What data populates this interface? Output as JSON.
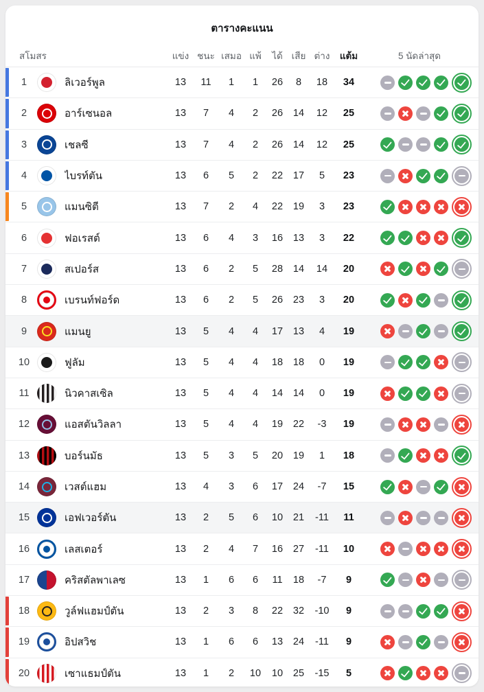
{
  "title": "ตารางคะแนน",
  "header": {
    "club": "สโมสร",
    "played": "แข่ง",
    "win": "ชนะ",
    "draw": "เสมอ",
    "loss": "แพ้",
    "gf": "ได้",
    "ga": "เสีย",
    "gd": "ต่าง",
    "points": "แต้ม",
    "last5": "5 นัดล่าสุด"
  },
  "colors": {
    "champions": "#4678e0",
    "europa": "#f7871e",
    "relegation": "#e2403a",
    "win": "#34a853",
    "draw": "#b1afba",
    "loss": "#ee453e",
    "highlight": "#f4f5f6"
  },
  "rows": [
    {
      "pos": 1,
      "team": "ลิเวอร์พูล",
      "played": 13,
      "win": 11,
      "draw": 1,
      "loss": 1,
      "gf": 26,
      "ga": 8,
      "gd": 18,
      "points": 34,
      "zone": "champions",
      "highlight": false,
      "form": [
        "d",
        "w",
        "w",
        "w",
        "w"
      ],
      "crest": {
        "style": "emblem",
        "c1": "#d3212f",
        "c2": "#ffffff"
      }
    },
    {
      "pos": 2,
      "team": "อาร์เซนอล",
      "played": 13,
      "win": 7,
      "draw": 4,
      "loss": 2,
      "gf": 26,
      "ga": 14,
      "gd": 12,
      "points": 25,
      "zone": "champions",
      "highlight": false,
      "form": [
        "d",
        "l",
        "d",
        "w",
        "w"
      ],
      "crest": {
        "style": "target",
        "c1": "#db0007",
        "c2": "#ffffff"
      }
    },
    {
      "pos": 3,
      "team": "เชลซี",
      "played": 13,
      "win": 7,
      "draw": 4,
      "loss": 2,
      "gf": 26,
      "ga": 14,
      "gd": 12,
      "points": 25,
      "zone": "champions",
      "highlight": false,
      "form": [
        "w",
        "d",
        "d",
        "w",
        "w"
      ],
      "crest": {
        "style": "target",
        "c1": "#0a4595",
        "c2": "#ffffff"
      }
    },
    {
      "pos": 4,
      "team": "ไบรท์ตัน",
      "played": 13,
      "win": 6,
      "draw": 5,
      "loss": 2,
      "gf": 22,
      "ga": 17,
      "gd": 5,
      "points": 23,
      "zone": "champions",
      "highlight": false,
      "form": [
        "d",
        "l",
        "w",
        "w",
        "d"
      ],
      "crest": {
        "style": "emblem",
        "c1": "#0054a6",
        "c2": "#ffffff"
      }
    },
    {
      "pos": 5,
      "team": "แมนซิตี",
      "played": 13,
      "win": 7,
      "draw": 2,
      "loss": 4,
      "gf": 22,
      "ga": 19,
      "gd": 3,
      "points": 23,
      "zone": "europa",
      "highlight": false,
      "form": [
        "w",
        "l",
        "l",
        "l",
        "l"
      ],
      "crest": {
        "style": "target",
        "c1": "#98c5e9",
        "c2": "#ffffff"
      }
    },
    {
      "pos": 6,
      "team": "ฟอเรสต์",
      "played": 13,
      "win": 6,
      "draw": 4,
      "loss": 3,
      "gf": 16,
      "ga": 13,
      "gd": 3,
      "points": 22,
      "zone": null,
      "highlight": false,
      "form": [
        "w",
        "w",
        "l",
        "l",
        "w"
      ],
      "crest": {
        "style": "emblem",
        "c1": "#e53233",
        "c2": "#ffffff"
      }
    },
    {
      "pos": 7,
      "team": "สเปอร์ส",
      "played": 13,
      "win": 6,
      "draw": 2,
      "loss": 5,
      "gf": 28,
      "ga": 14,
      "gd": 14,
      "points": 20,
      "zone": null,
      "highlight": false,
      "form": [
        "l",
        "w",
        "l",
        "w",
        "d"
      ],
      "crest": {
        "style": "emblem",
        "c1": "#1b2a5b",
        "c2": "#ffffff"
      }
    },
    {
      "pos": 8,
      "team": "เบรนท์ฟอร์ด",
      "played": 13,
      "win": 6,
      "draw": 2,
      "loss": 5,
      "gf": 26,
      "ga": 23,
      "gd": 3,
      "points": 20,
      "zone": null,
      "highlight": false,
      "form": [
        "w",
        "l",
        "w",
        "d",
        "w"
      ],
      "crest": {
        "style": "ring",
        "c1": "#e30613",
        "c2": "#ffffff"
      }
    },
    {
      "pos": 9,
      "team": "แมนยู",
      "played": 13,
      "win": 5,
      "draw": 4,
      "loss": 4,
      "gf": 17,
      "ga": 13,
      "gd": 4,
      "points": 19,
      "zone": null,
      "highlight": true,
      "form": [
        "l",
        "d",
        "w",
        "d",
        "w"
      ],
      "crest": {
        "style": "target",
        "c1": "#da291c",
        "c2": "#fbe122"
      }
    },
    {
      "pos": 10,
      "team": "ฟูลัม",
      "played": 13,
      "win": 5,
      "draw": 4,
      "loss": 4,
      "gf": 18,
      "ga": 18,
      "gd": 0,
      "points": 19,
      "zone": null,
      "highlight": false,
      "form": [
        "d",
        "w",
        "w",
        "l",
        "d"
      ],
      "crest": {
        "style": "emblem",
        "c1": "#1a1a1a",
        "c2": "#ffffff"
      }
    },
    {
      "pos": 11,
      "team": "นิวคาสเซิล",
      "played": 13,
      "win": 5,
      "draw": 4,
      "loss": 4,
      "gf": 14,
      "ga": 14,
      "gd": 0,
      "points": 19,
      "zone": null,
      "highlight": false,
      "form": [
        "l",
        "w",
        "w",
        "l",
        "d"
      ],
      "crest": {
        "style": "stripes",
        "c1": "#241f20",
        "c2": "#ffffff"
      }
    },
    {
      "pos": 12,
      "team": "แอสตันวิลลา",
      "played": 13,
      "win": 5,
      "draw": 4,
      "loss": 4,
      "gf": 19,
      "ga": 22,
      "gd": -3,
      "points": 19,
      "zone": null,
      "highlight": false,
      "form": [
        "d",
        "l",
        "l",
        "d",
        "l"
      ],
      "crest": {
        "style": "target",
        "c1": "#670e36",
        "c2": "#95bfe5"
      }
    },
    {
      "pos": 13,
      "team": "บอร์นมัธ",
      "played": 13,
      "win": 5,
      "draw": 3,
      "loss": 5,
      "gf": 20,
      "ga": 19,
      "gd": 1,
      "points": 18,
      "zone": null,
      "highlight": false,
      "form": [
        "d",
        "w",
        "l",
        "l",
        "w"
      ],
      "crest": {
        "style": "stripes",
        "c1": "#b50e12",
        "c2": "#000000"
      }
    },
    {
      "pos": 14,
      "team": "เวสต์แฮม",
      "played": 13,
      "win": 4,
      "draw": 3,
      "loss": 6,
      "gf": 17,
      "ga": 24,
      "gd": -7,
      "points": 15,
      "zone": null,
      "highlight": false,
      "form": [
        "w",
        "l",
        "d",
        "w",
        "l"
      ],
      "crest": {
        "style": "target",
        "c1": "#7a263a",
        "c2": "#1bb1e7"
      }
    },
    {
      "pos": 15,
      "team": "เอฟเวอร์ตัน",
      "played": 13,
      "win": 2,
      "draw": 5,
      "loss": 6,
      "gf": 10,
      "ga": 21,
      "gd": -11,
      "points": 11,
      "zone": null,
      "highlight": true,
      "form": [
        "d",
        "l",
        "d",
        "d",
        "l"
      ],
      "crest": {
        "style": "target",
        "c1": "#003399",
        "c2": "#ffffff"
      }
    },
    {
      "pos": 16,
      "team": "เลสเตอร์",
      "played": 13,
      "win": 2,
      "draw": 4,
      "loss": 7,
      "gf": 16,
      "ga": 27,
      "gd": -11,
      "points": 10,
      "zone": null,
      "highlight": false,
      "form": [
        "l",
        "d",
        "l",
        "l",
        "l"
      ],
      "crest": {
        "style": "ring",
        "c1": "#0053a0",
        "c2": "#ffffff"
      }
    },
    {
      "pos": 17,
      "team": "คริสตัลพาเลซ",
      "played": 13,
      "win": 1,
      "draw": 6,
      "loss": 6,
      "gf": 11,
      "ga": 18,
      "gd": -7,
      "points": 9,
      "zone": null,
      "highlight": false,
      "form": [
        "w",
        "d",
        "l",
        "d",
        "d"
      ],
      "crest": {
        "style": "half",
        "c1": "#1b458f",
        "c2": "#c4122e"
      }
    },
    {
      "pos": 18,
      "team": "วูล์ฟแฮมป์ตัน",
      "played": 13,
      "win": 2,
      "draw": 3,
      "loss": 8,
      "gf": 22,
      "ga": 32,
      "gd": -10,
      "points": 9,
      "zone": "relegation",
      "highlight": false,
      "form": [
        "d",
        "d",
        "w",
        "w",
        "l"
      ],
      "crest": {
        "style": "target",
        "c1": "#fdb913",
        "c2": "#231f20"
      }
    },
    {
      "pos": 19,
      "team": "อิปสวิช",
      "played": 13,
      "win": 1,
      "draw": 6,
      "loss": 6,
      "gf": 13,
      "ga": 24,
      "gd": -11,
      "points": 9,
      "zone": "relegation",
      "highlight": false,
      "form": [
        "l",
        "d",
        "w",
        "d",
        "l"
      ],
      "crest": {
        "style": "ring",
        "c1": "#1c4f9c",
        "c2": "#ffffff"
      }
    },
    {
      "pos": 20,
      "team": "เซาแธมป์ตัน",
      "played": 13,
      "win": 1,
      "draw": 2,
      "loss": 10,
      "gf": 10,
      "ga": 25,
      "gd": -15,
      "points": 5,
      "zone": "relegation",
      "highlight": false,
      "form": [
        "l",
        "w",
        "l",
        "l",
        "d"
      ],
      "crest": {
        "style": "stripes",
        "c1": "#d71920",
        "c2": "#ffffff"
      }
    }
  ]
}
